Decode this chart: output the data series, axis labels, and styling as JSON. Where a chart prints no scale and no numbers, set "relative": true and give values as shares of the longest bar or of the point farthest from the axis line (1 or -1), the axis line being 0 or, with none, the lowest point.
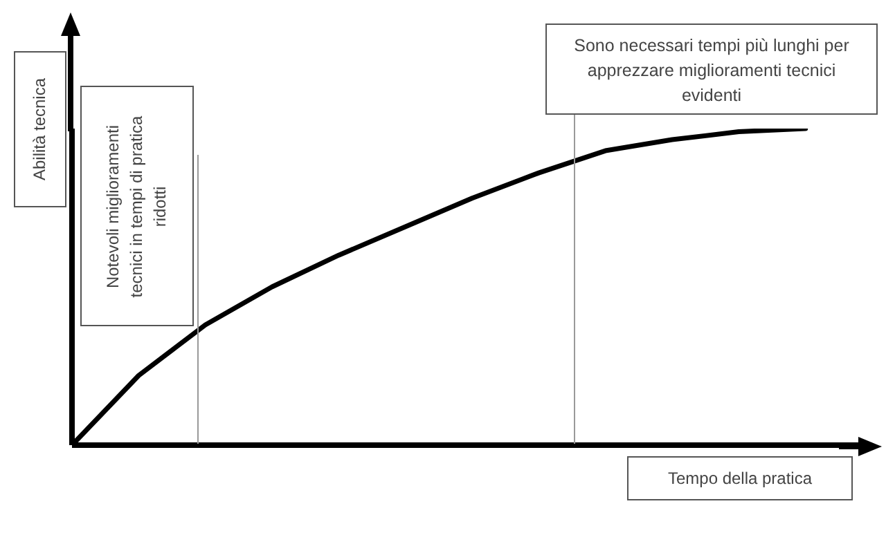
{
  "chart_data": {
    "type": "line",
    "relative": true,
    "xlabel": "Tempo della pratica",
    "ylabel": "Abilità tecnica",
    "categories": [
      null,
      null,
      null,
      null,
      null,
      null,
      null,
      null,
      null,
      null,
      null,
      null,
      null
    ],
    "series": [
      {
        "color": "#000000",
        "values": [
          0,
          0.22,
          0.38,
          0.5,
          0.6,
          0.69,
          0.78,
          0.86,
          0.93,
          0.965,
          0.99,
          1,
          null
        ]
      }
    ],
    "annotations": [
      "Notevoli miglioramenti tecnici in tempi di pratica ridotti",
      "Sono necessari tempi più lunghi per apprezzare miglioramenti tecnici evidenti"
    ],
    "marker": "none"
  }
}
